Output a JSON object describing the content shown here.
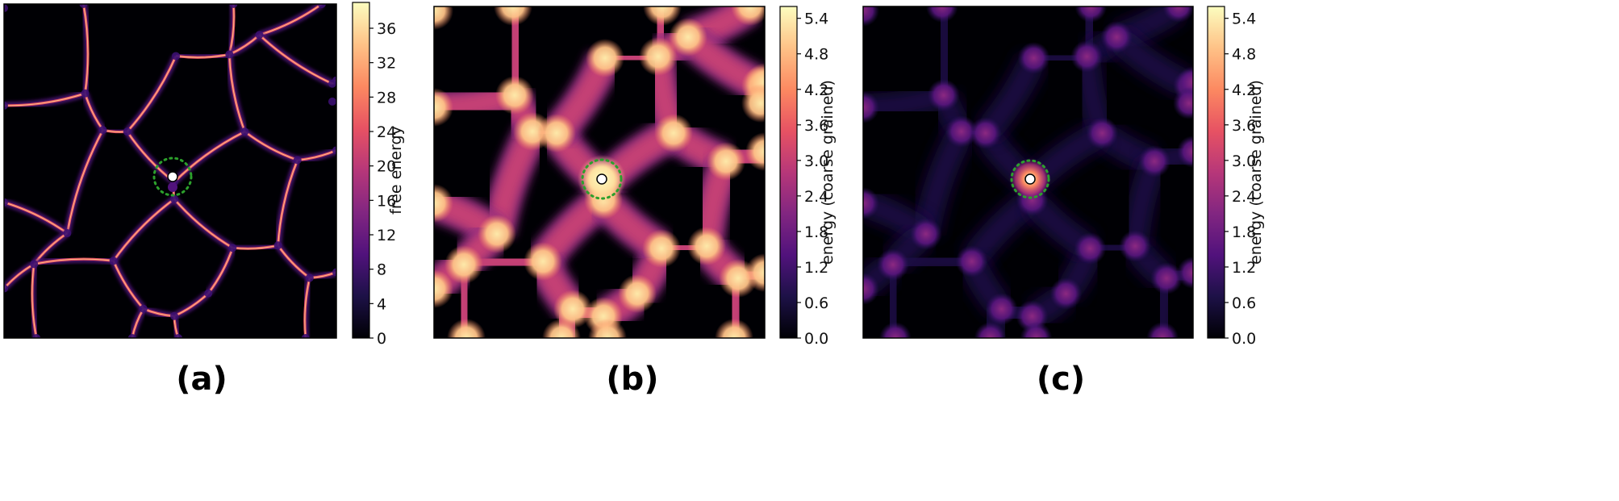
{
  "chart_data": [
    {
      "type": "heatmap",
      "panel": "(a)",
      "colorbar_label": "free energy",
      "colormap": "magma",
      "zlim": [
        0,
        39
      ],
      "colorbar_ticks": [
        "0",
        "4",
        "8",
        "12",
        "16",
        "20",
        "24",
        "28",
        "32",
        "36"
      ],
      "colorbar_tick_values": [
        0,
        4,
        8,
        12,
        16,
        20,
        24,
        28,
        32,
        36
      ],
      "pattern": "thin bright network edges on dark background",
      "marker": "white circle",
      "dotted_circle_color": "#2ca02c"
    },
    {
      "type": "heatmap",
      "panel": "(b)",
      "colorbar_label": "energy (coarse grained)",
      "colormap": "magma",
      "zlim": [
        0.0,
        5.6
      ],
      "colorbar_ticks": [
        "0.0",
        "0.6",
        "1.2",
        "1.8",
        "2.4",
        "3.0",
        "3.6",
        "4.2",
        "4.8",
        "5.4"
      ],
      "colorbar_tick_values": [
        0.0,
        0.6,
        1.2,
        1.8,
        2.4,
        3.0,
        3.6,
        4.2,
        4.8,
        5.4
      ],
      "pattern": "broad glowing network edges with bright junction nodes",
      "marker": "white circle",
      "dotted_circle_color": "#2ca02c"
    },
    {
      "type": "heatmap",
      "panel": "(c)",
      "colorbar_label": "energy (coarse grained)",
      "colormap": "magma",
      "zlim": [
        0.0,
        5.6
      ],
      "colorbar_ticks": [
        "0.0",
        "0.6",
        "1.2",
        "1.8",
        "2.4",
        "3.0",
        "3.6",
        "4.2",
        "4.8",
        "5.4"
      ],
      "colorbar_tick_values": [
        0.0,
        0.6,
        1.2,
        1.8,
        2.4,
        3.0,
        3.6,
        4.2,
        4.8,
        5.4
      ],
      "pattern": "dim network with purple junction nodes and bright center",
      "marker": "white circle",
      "dotted_circle_color": "#2ca02c"
    }
  ],
  "captions": [
    "(a)",
    "(b)",
    "(c)"
  ],
  "colors": {
    "background": "#000004",
    "magma_stops": [
      "#000004",
      "#1d1147",
      "#51127c",
      "#822681",
      "#b73779",
      "#e75263",
      "#fc8961",
      "#fec287",
      "#fcfdbf"
    ]
  }
}
